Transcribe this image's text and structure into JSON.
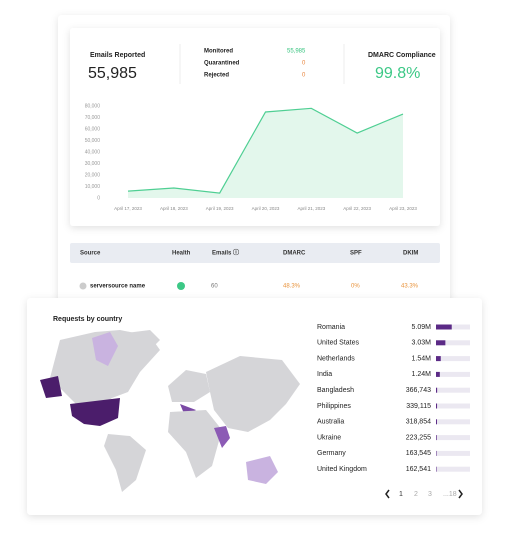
{
  "stats": {
    "emails_reported": {
      "label": "Emails Reported",
      "value": "55,985"
    },
    "monitored": {
      "label": "Monitored",
      "value": "55,985"
    },
    "quarantined": {
      "label": "Quarantined",
      "value": "0"
    },
    "rejected": {
      "label": "Rejected",
      "value": "0"
    },
    "compliance": {
      "label": "DMARC Compliance",
      "value": "99.8%"
    }
  },
  "chart_data": {
    "type": "line",
    "categories": [
      "April 17, 2023",
      "April 18, 2023",
      "April 19, 2023",
      "April 20, 2023",
      "April 21, 2023",
      "April 22, 2023",
      "April 23, 2023"
    ],
    "values": [
      6000,
      8700,
      4300,
      74800,
      78000,
      56500,
      73000
    ],
    "color": "#4fcf93",
    "fill": "#e3f7ec",
    "ylim": [
      0,
      80000
    ],
    "yticks": [
      0,
      {
        "value": 10000,
        "label": "10,000"
      },
      {
        "value": 20000,
        "label": "20,000"
      },
      {
        "value": 30000,
        "label": "30,000"
      },
      {
        "value": 40000,
        "label": "40,000"
      },
      {
        "value": 50000,
        "label": "50,000"
      },
      {
        "value": 60000,
        "label": "60,000"
      },
      {
        "value": 70000,
        "label": "70,000"
      },
      {
        "value": 80000,
        "label": "80,000"
      }
    ]
  },
  "table": {
    "headers": [
      "Source",
      "Health",
      "Emails ⓘ",
      "DMARC",
      "SPF",
      "DKIM"
    ],
    "rows": [
      [
        "serversource name",
        "60",
        "48.3%",
        "0%",
        "43.3%"
      ]
    ]
  },
  "country_panel": {
    "title": "Requests by country",
    "countries": [
      "Romania",
      "United States",
      "Netherlands",
      "India",
      "Bangladesh",
      "Philippines",
      "Australia",
      "Ukraine",
      "Germany",
      "United Kingdom"
    ],
    "values": [
      5090000,
      3030000,
      1540000,
      1240000,
      366743,
      339115,
      318854,
      223255,
      163545,
      162541
    ],
    "value_labels": [
      "5.09M",
      "3.03M",
      "1.54M",
      "1.24M",
      "366,743",
      "339,115",
      "318,854",
      "223,255",
      "163,545",
      "162,541"
    ],
    "xlim": [
      0,
      11000000
    ],
    "color": "#5b2a86",
    "pages": [
      "1",
      "2",
      "3",
      "...18"
    ]
  }
}
